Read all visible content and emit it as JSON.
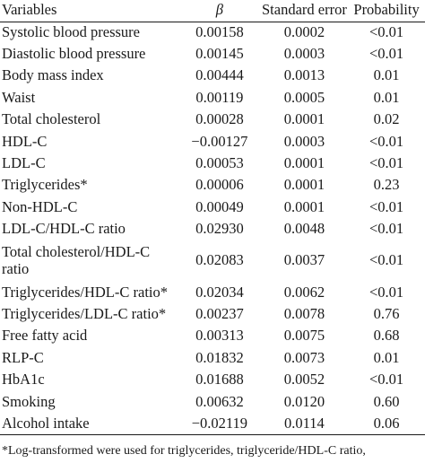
{
  "table": {
    "headers": [
      "Variables",
      "β",
      "Standard error",
      "Probability"
    ],
    "rows": [
      [
        "Systolic blood pressure",
        "0.00158",
        "0.0002",
        "<0.01"
      ],
      [
        "Diastolic blood pressure",
        "0.00145",
        "0.0003",
        "<0.01"
      ],
      [
        "Body mass index",
        "0.00444",
        "0.0013",
        "0.01"
      ],
      [
        "Waist",
        "0.00119",
        "0.0005",
        "0.01"
      ],
      [
        "Total cholesterol",
        "0.00028",
        "0.0001",
        "0.02"
      ],
      [
        "HDL-C",
        "−0.00127",
        "0.0003",
        "<0.01"
      ],
      [
        "LDL-C",
        "0.00053",
        "0.0001",
        "<0.01"
      ],
      [
        "Triglycerides*",
        "0.00006",
        "0.0001",
        "0.23"
      ],
      [
        "Non-HDL-C",
        "0.00049",
        "0.0001",
        "<0.01"
      ],
      [
        "LDL-C/HDL-C ratio",
        "0.02930",
        "0.0048",
        "<0.01"
      ],
      [
        "Total cholesterol/HDL-C\nratio",
        "0.02083",
        "0.0037",
        "<0.01"
      ],
      [
        "Triglycerides/HDL-C ratio*",
        "0.02034",
        "0.0062",
        "<0.01"
      ],
      [
        "Triglycerides/LDL-C ratio*",
        "0.00237",
        "0.0078",
        "0.76"
      ],
      [
        "Free fatty acid",
        "0.00313",
        "0.0075",
        "0.68"
      ],
      [
        "RLP-C",
        "0.01832",
        "0.0073",
        "0.01"
      ],
      [
        "HbA1c",
        "0.01688",
        "0.0052",
        "<0.01"
      ],
      [
        "Smoking",
        "0.00632",
        "0.0120",
        "0.60"
      ],
      [
        "Alcohol intake",
        "−0.02119",
        "0.0114",
        "0.06"
      ]
    ]
  },
  "footnote": "*Log-transformed were used for triglycerides, triglyceride/HDL-C ratio,"
}
